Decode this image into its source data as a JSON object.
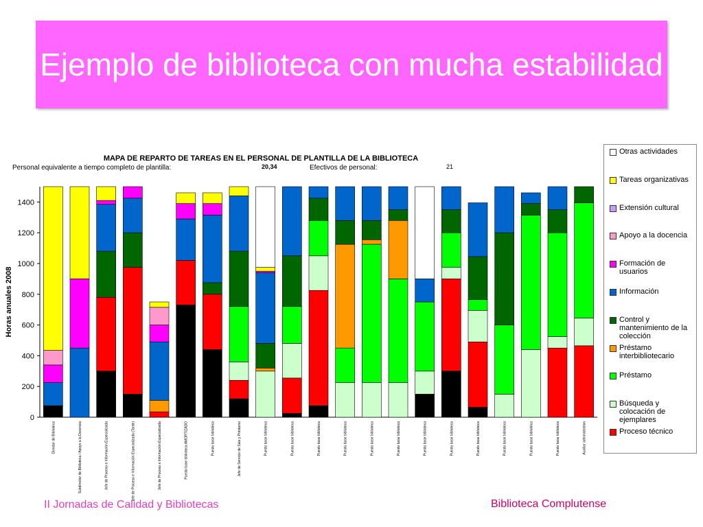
{
  "title": "Ejemplo de biblioteca con mucha estabilidad",
  "footer_left": "II Jornadas de Calidad y Bibliotecas",
  "footer_right": "Biblioteca Complutense",
  "chart_data": {
    "type": "bar",
    "stacked": true,
    "title": "MAPA DE REPARTO DE TAREAS EN EL PERSONAL DE PLANTILLA DE LA BIBLIOTECA",
    "header_left_label": "Personal equivalente a tiempo completo de plantilla:",
    "header_left_value": "20,34",
    "header_right_label": "Efectivos de personal:",
    "header_right_value": "21",
    "y_label": "Horas anuales 2008",
    "ylim": [
      0,
      1500
    ],
    "yticks": [
      0,
      200,
      400,
      600,
      800,
      1000,
      1200,
      1400
    ],
    "categories": [
      "Director de Biblioteca",
      "Subdirector de Biblioteca / Apoyo a la Docencia",
      "Jefe de Proceso e Información Especializada",
      "Jefe de Proceso e Información Especializada (Tarde)",
      "Jefe de Proceso e Información Especializada",
      "Puesto base biblioteca AMORTIZADO",
      "Puesto base biblioteca",
      "Jefe de Servicio de Sala y Préstamo",
      "Puesto base biblioteca",
      "Puesto base biblioteca",
      "Puesto base biblioteca",
      "Puesto base biblioteca",
      "Puesto base biblioteca",
      "Puesto base biblioteca",
      "Puesto base biblioteca",
      "Puesto base biblioteca",
      "Puesto base biblioteca",
      "Puesto base biblioteca",
      "Puesto base biblioteca",
      "Puesto base biblioteca",
      "Auxiliar administrativo"
    ],
    "series": [
      {
        "name": null,
        "color": "#000000",
        "values": [
          75,
          0,
          300,
          150,
          0,
          730,
          440,
          120,
          0,
          25,
          75,
          0,
          0,
          0,
          150,
          300,
          65,
          0,
          0,
          0,
          0
        ]
      },
      {
        "name": "Proceso técnico",
        "color": "#ff0000",
        "values": [
          0,
          0,
          480,
          825,
          35,
          290,
          360,
          120,
          0,
          230,
          750,
          0,
          0,
          0,
          0,
          600,
          425,
          0,
          0,
          450,
          465
        ]
      },
      {
        "name": "Búsqueda y colocación de ejemplares",
        "color": "#ccffcc",
        "values": [
          0,
          0,
          0,
          0,
          0,
          0,
          0,
          120,
          300,
          225,
          225,
          225,
          225,
          225,
          150,
          75,
          205,
          150,
          440,
          75,
          180
        ]
      },
      {
        "name": "Préstamo",
        "color": "#00ff00",
        "values": [
          0,
          0,
          0,
          0,
          0,
          0,
          0,
          360,
          0,
          240,
          230,
          225,
          900,
          675,
          450,
          225,
          70,
          450,
          875,
          675,
          750
        ]
      },
      {
        "name": "Préstamo interbibliotecario",
        "color": "#ff9900",
        "values": [
          0,
          0,
          0,
          0,
          75,
          0,
          0,
          0,
          20,
          0,
          0,
          675,
          30,
          380,
          0,
          0,
          0,
          0,
          0,
          0,
          0
        ]
      },
      {
        "name": "Control y mantenimiento de la colección",
        "color": "#006600",
        "values": [
          0,
          0,
          300,
          225,
          0,
          0,
          75,
          360,
          160,
          330,
          145,
          155,
          125,
          70,
          0,
          150,
          280,
          600,
          75,
          150,
          105
        ]
      },
      {
        "name": "Información",
        "color": "#0066cc",
        "values": [
          150,
          450,
          305,
          225,
          380,
          270,
          440,
          360,
          460,
          450,
          75,
          220,
          220,
          150,
          150,
          150,
          350,
          300,
          70,
          150,
          0
        ]
      },
      {
        "name": "Formación de usuarios",
        "color": "#ff00ff",
        "values": [
          115,
          450,
          25,
          75,
          110,
          100,
          75,
          0,
          10,
          0,
          0,
          0,
          0,
          0,
          0,
          0,
          0,
          0,
          0,
          0,
          0
        ]
      },
      {
        "name": "Apoyo a la docencia",
        "color": "#ff99cc",
        "values": [
          95,
          0,
          0,
          0,
          115,
          0,
          0,
          0,
          0,
          0,
          0,
          0,
          0,
          0,
          0,
          0,
          0,
          0,
          0,
          0,
          0
        ]
      },
      {
        "name": "Extensión cultural",
        "color": "#cc99ff",
        "values": [
          0,
          0,
          0,
          0,
          0,
          0,
          0,
          0,
          0,
          0,
          0,
          0,
          0,
          0,
          0,
          0,
          0,
          0,
          0,
          0,
          0
        ]
      },
      {
        "name": "Tareas organizativas",
        "color": "#ffff00",
        "values": [
          1065,
          600,
          90,
          0,
          35,
          70,
          70,
          60,
          25,
          0,
          0,
          0,
          0,
          0,
          0,
          0,
          0,
          0,
          0,
          0,
          0
        ]
      },
      {
        "name": "Otras actividades",
        "color": "#ffffff",
        "values": [
          0,
          0,
          0,
          0,
          0,
          0,
          0,
          0,
          525,
          0,
          0,
          0,
          0,
          0,
          600,
          0,
          0,
          0,
          0,
          0,
          0
        ]
      }
    ]
  }
}
